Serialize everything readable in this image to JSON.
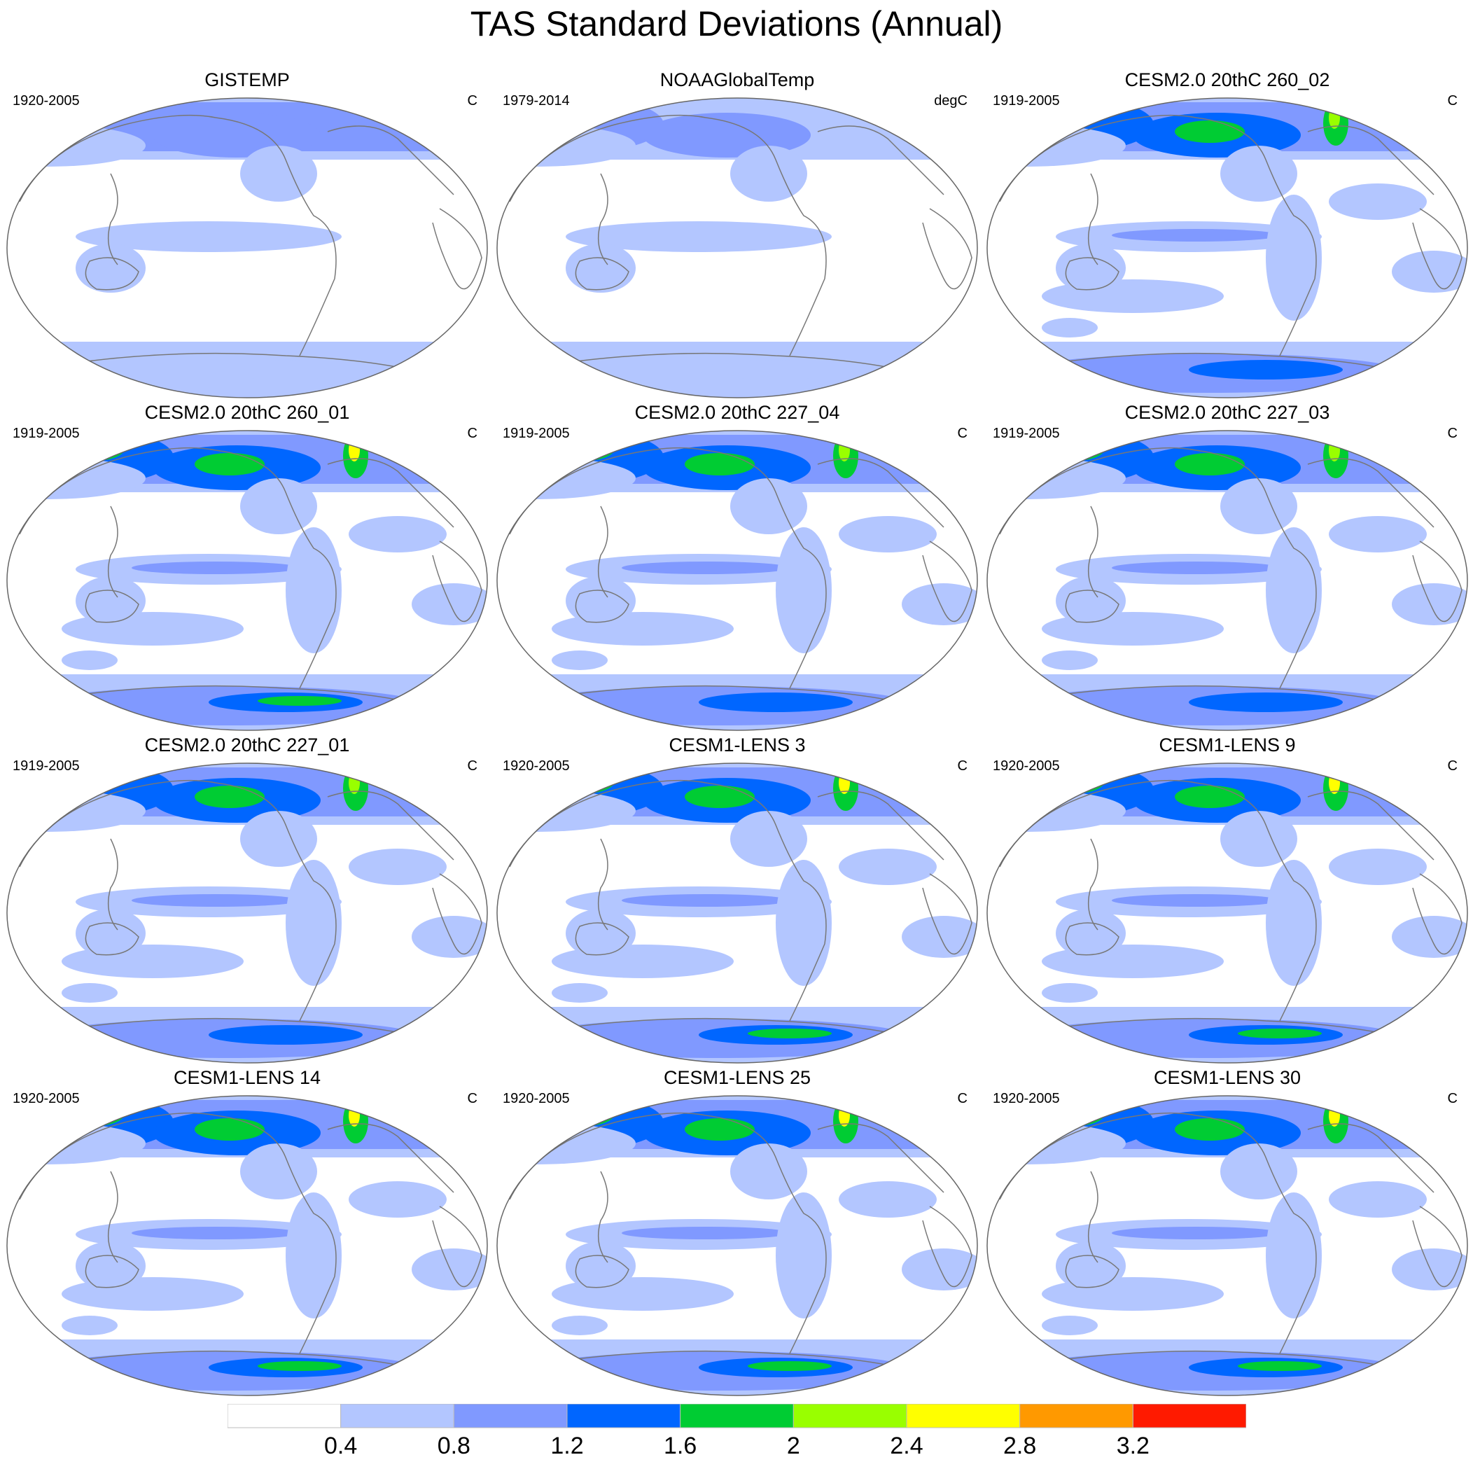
{
  "title": "TAS Standard Deviations (Annual)",
  "panels": [
    {
      "title": "GISTEMP",
      "period": "1920-2005",
      "units": "C",
      "intensity": 0.15,
      "ocean_cap": 2
    },
    {
      "title": "NOAAGlobalTemp",
      "period": "1979-2014",
      "units": "degC",
      "intensity": 0.0,
      "ocean_cap": 2
    },
    {
      "title": "CESM2.0 20thC 260_02",
      "period": "1919-2005",
      "units": "C",
      "intensity": 0.55,
      "ocean_cap": 4
    },
    {
      "title": "CESM2.0 20thC 260_01",
      "period": "1919-2005",
      "units": "C",
      "intensity": 0.75,
      "ocean_cap": 4
    },
    {
      "title": "CESM2.0 20thC 227_04",
      "period": "1919-2005",
      "units": "C",
      "intensity": 0.7,
      "ocean_cap": 4
    },
    {
      "title": "CESM2.0 20thC 227_03",
      "period": "1919-2005",
      "units": "C",
      "intensity": 0.7,
      "ocean_cap": 4
    },
    {
      "title": "CESM2.0 20thC 227_01",
      "period": "1919-2005",
      "units": "C",
      "intensity": 0.6,
      "ocean_cap": 4
    },
    {
      "title": "CESM1-LENS 3",
      "period": "1920-2005",
      "units": "C",
      "intensity": 0.85,
      "ocean_cap": 3
    },
    {
      "title": "CESM1-LENS 9",
      "period": "1920-2005",
      "units": "C",
      "intensity": 0.8,
      "ocean_cap": 3
    },
    {
      "title": "CESM1-LENS 14",
      "period": "1920-2005",
      "units": "C",
      "intensity": 0.8,
      "ocean_cap": 3
    },
    {
      "title": "CESM1-LENS 25",
      "period": "1920-2005",
      "units": "C",
      "intensity": 0.85,
      "ocean_cap": 3
    },
    {
      "title": "CESM1-LENS 30",
      "period": "1920-2005",
      "units": "C",
      "intensity": 0.75,
      "ocean_cap": 3
    }
  ],
  "colorbar": {
    "colors": [
      "#ffffff",
      "#b3c6ff",
      "#8099ff",
      "#0066ff",
      "#00cc33",
      "#99ff00",
      "#ffff00",
      "#ff9900",
      "#ff1a00"
    ],
    "labels": [
      "0.4",
      "0.8",
      "1.2",
      "1.6",
      "2",
      "2.4",
      "2.8",
      "3.2"
    ]
  }
}
